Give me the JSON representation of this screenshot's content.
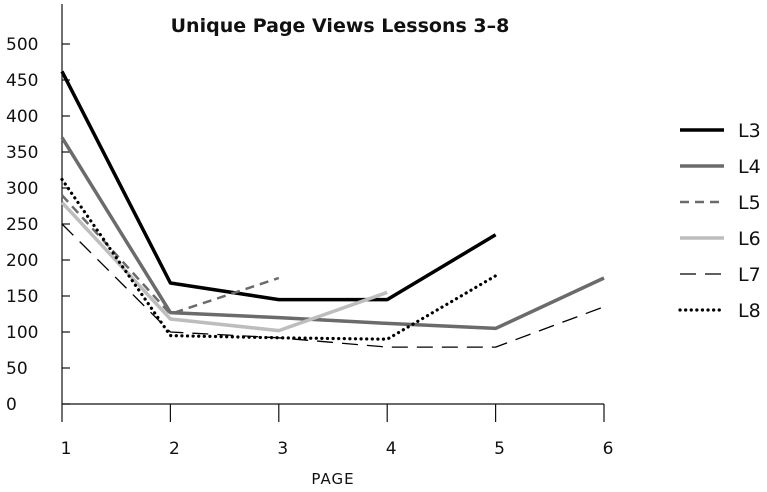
{
  "chart_data": {
    "type": "line",
    "title": "Unique Page Views Lessons 3–8",
    "xlabel": "PAGE",
    "ylabel": "",
    "x": [
      1,
      2,
      3,
      4,
      5,
      6
    ],
    "xlim": [
      1,
      6
    ],
    "ylim": [
      0,
      500
    ],
    "yticks": [
      0,
      50,
      100,
      150,
      200,
      250,
      300,
      350,
      400,
      450,
      500
    ],
    "ytick_labels": [
      "0",
      "50",
      "100",
      "150",
      "200",
      "250",
      "300",
      "350",
      "400",
      "450",
      "500"
    ],
    "xtick_labels": [
      "1",
      "2",
      "3",
      "4",
      "5",
      "6"
    ],
    "grid": false,
    "legend_position": "right",
    "series": [
      {
        "name": "L3",
        "values": [
          462,
          168,
          145,
          145,
          235,
          null
        ],
        "color": "#000000",
        "style": "solid-thick"
      },
      {
        "name": "L4",
        "values": [
          370,
          127,
          120,
          112,
          105,
          175
        ],
        "color": "#6b6b6b",
        "style": "solid-thick"
      },
      {
        "name": "L5",
        "values": [
          290,
          125,
          175,
          null,
          null,
          null
        ],
        "color": "#6b6b6b",
        "style": "dashed"
      },
      {
        "name": "L6",
        "values": [
          280,
          118,
          102,
          155,
          null,
          null
        ],
        "color": "#bdbdbd",
        "style": "solid-thick"
      },
      {
        "name": "L7",
        "values": [
          250,
          100,
          92,
          79,
          79,
          135
        ],
        "color": "#000000",
        "style": "long-dash"
      },
      {
        "name": "L8",
        "values": [
          312,
          95,
          92,
          90,
          178,
          null
        ],
        "color": "#000000",
        "style": "dotted"
      }
    ]
  }
}
